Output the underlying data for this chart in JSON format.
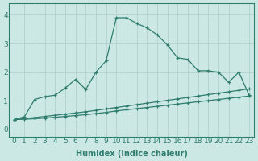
{
  "x": [
    0,
    1,
    2,
    3,
    4,
    5,
    6,
    7,
    8,
    9,
    10,
    11,
    12,
    13,
    14,
    15,
    16,
    17,
    18,
    19,
    20,
    21,
    22,
    23
  ],
  "line1": [
    0.35,
    0.45,
    1.05,
    1.15,
    1.2,
    1.45,
    1.75,
    1.4,
    2.0,
    2.4,
    3.9,
    3.9,
    3.7,
    3.55,
    3.3,
    2.95,
    2.5,
    2.45,
    2.05,
    2.05,
    2.0,
    1.65,
    2.0,
    1.2
  ],
  "line2": [
    0.35,
    0.38,
    0.42,
    0.46,
    0.5,
    0.54,
    0.58,
    0.62,
    0.67,
    0.72,
    0.77,
    0.82,
    0.87,
    0.92,
    0.97,
    1.02,
    1.07,
    1.12,
    1.17,
    1.22,
    1.27,
    1.32,
    1.37,
    1.42
  ],
  "line3": [
    0.35,
    0.36,
    0.38,
    0.4,
    0.43,
    0.46,
    0.49,
    0.52,
    0.56,
    0.6,
    0.65,
    0.69,
    0.73,
    0.77,
    0.81,
    0.85,
    0.89,
    0.93,
    0.97,
    1.01,
    1.05,
    1.09,
    1.13,
    1.17
  ],
  "line_color": "#2e7d6e",
  "bg_color": "#cce8e4",
  "grid_color": "#aaceca",
  "xlabel": "Humidex (Indice chaleur)",
  "xlim": [
    -0.5,
    23.5
  ],
  "ylim": [
    -0.25,
    4.4
  ],
  "yticks": [
    0,
    1,
    2,
    3,
    4
  ],
  "xticks": [
    0,
    1,
    2,
    3,
    4,
    5,
    6,
    7,
    8,
    9,
    10,
    11,
    12,
    13,
    14,
    15,
    16,
    17,
    18,
    19,
    20,
    21,
    22,
    23
  ],
  "label_fontsize": 7,
  "tick_fontsize": 6.5
}
